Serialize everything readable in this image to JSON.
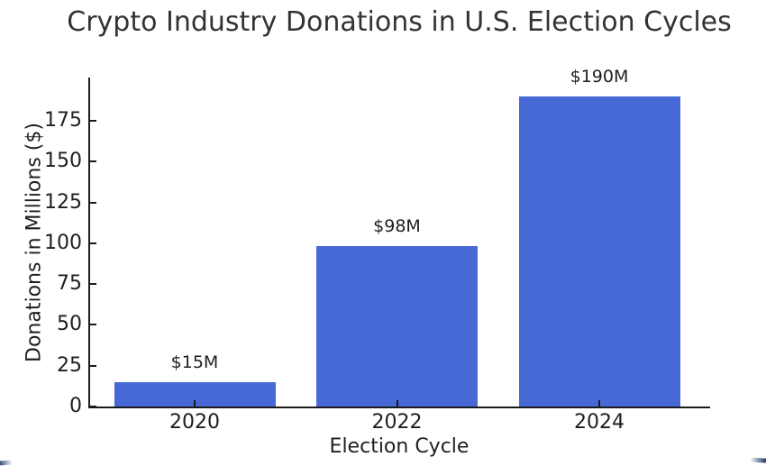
{
  "chart_data": {
    "type": "bar",
    "title": "Crypto Industry Donations in U.S. Election Cycles",
    "xlabel": "Election Cycle",
    "ylabel": "Donations in Millions ($)",
    "categories": [
      "2020",
      "2022",
      "2024"
    ],
    "values": [
      15,
      98,
      190
    ],
    "bar_labels": [
      "$15M",
      "$98M",
      "$190M"
    ],
    "yticks": [
      0,
      25,
      50,
      75,
      100,
      125,
      150,
      175
    ],
    "ylim": [
      0,
      201.5
    ],
    "grid": false,
    "legend_position": "none",
    "colors": {
      "bar": "#4769d6",
      "axis": "#1b1b1b",
      "text": "#1f1f1f",
      "title": "#333333",
      "background": "#ffffff"
    }
  }
}
